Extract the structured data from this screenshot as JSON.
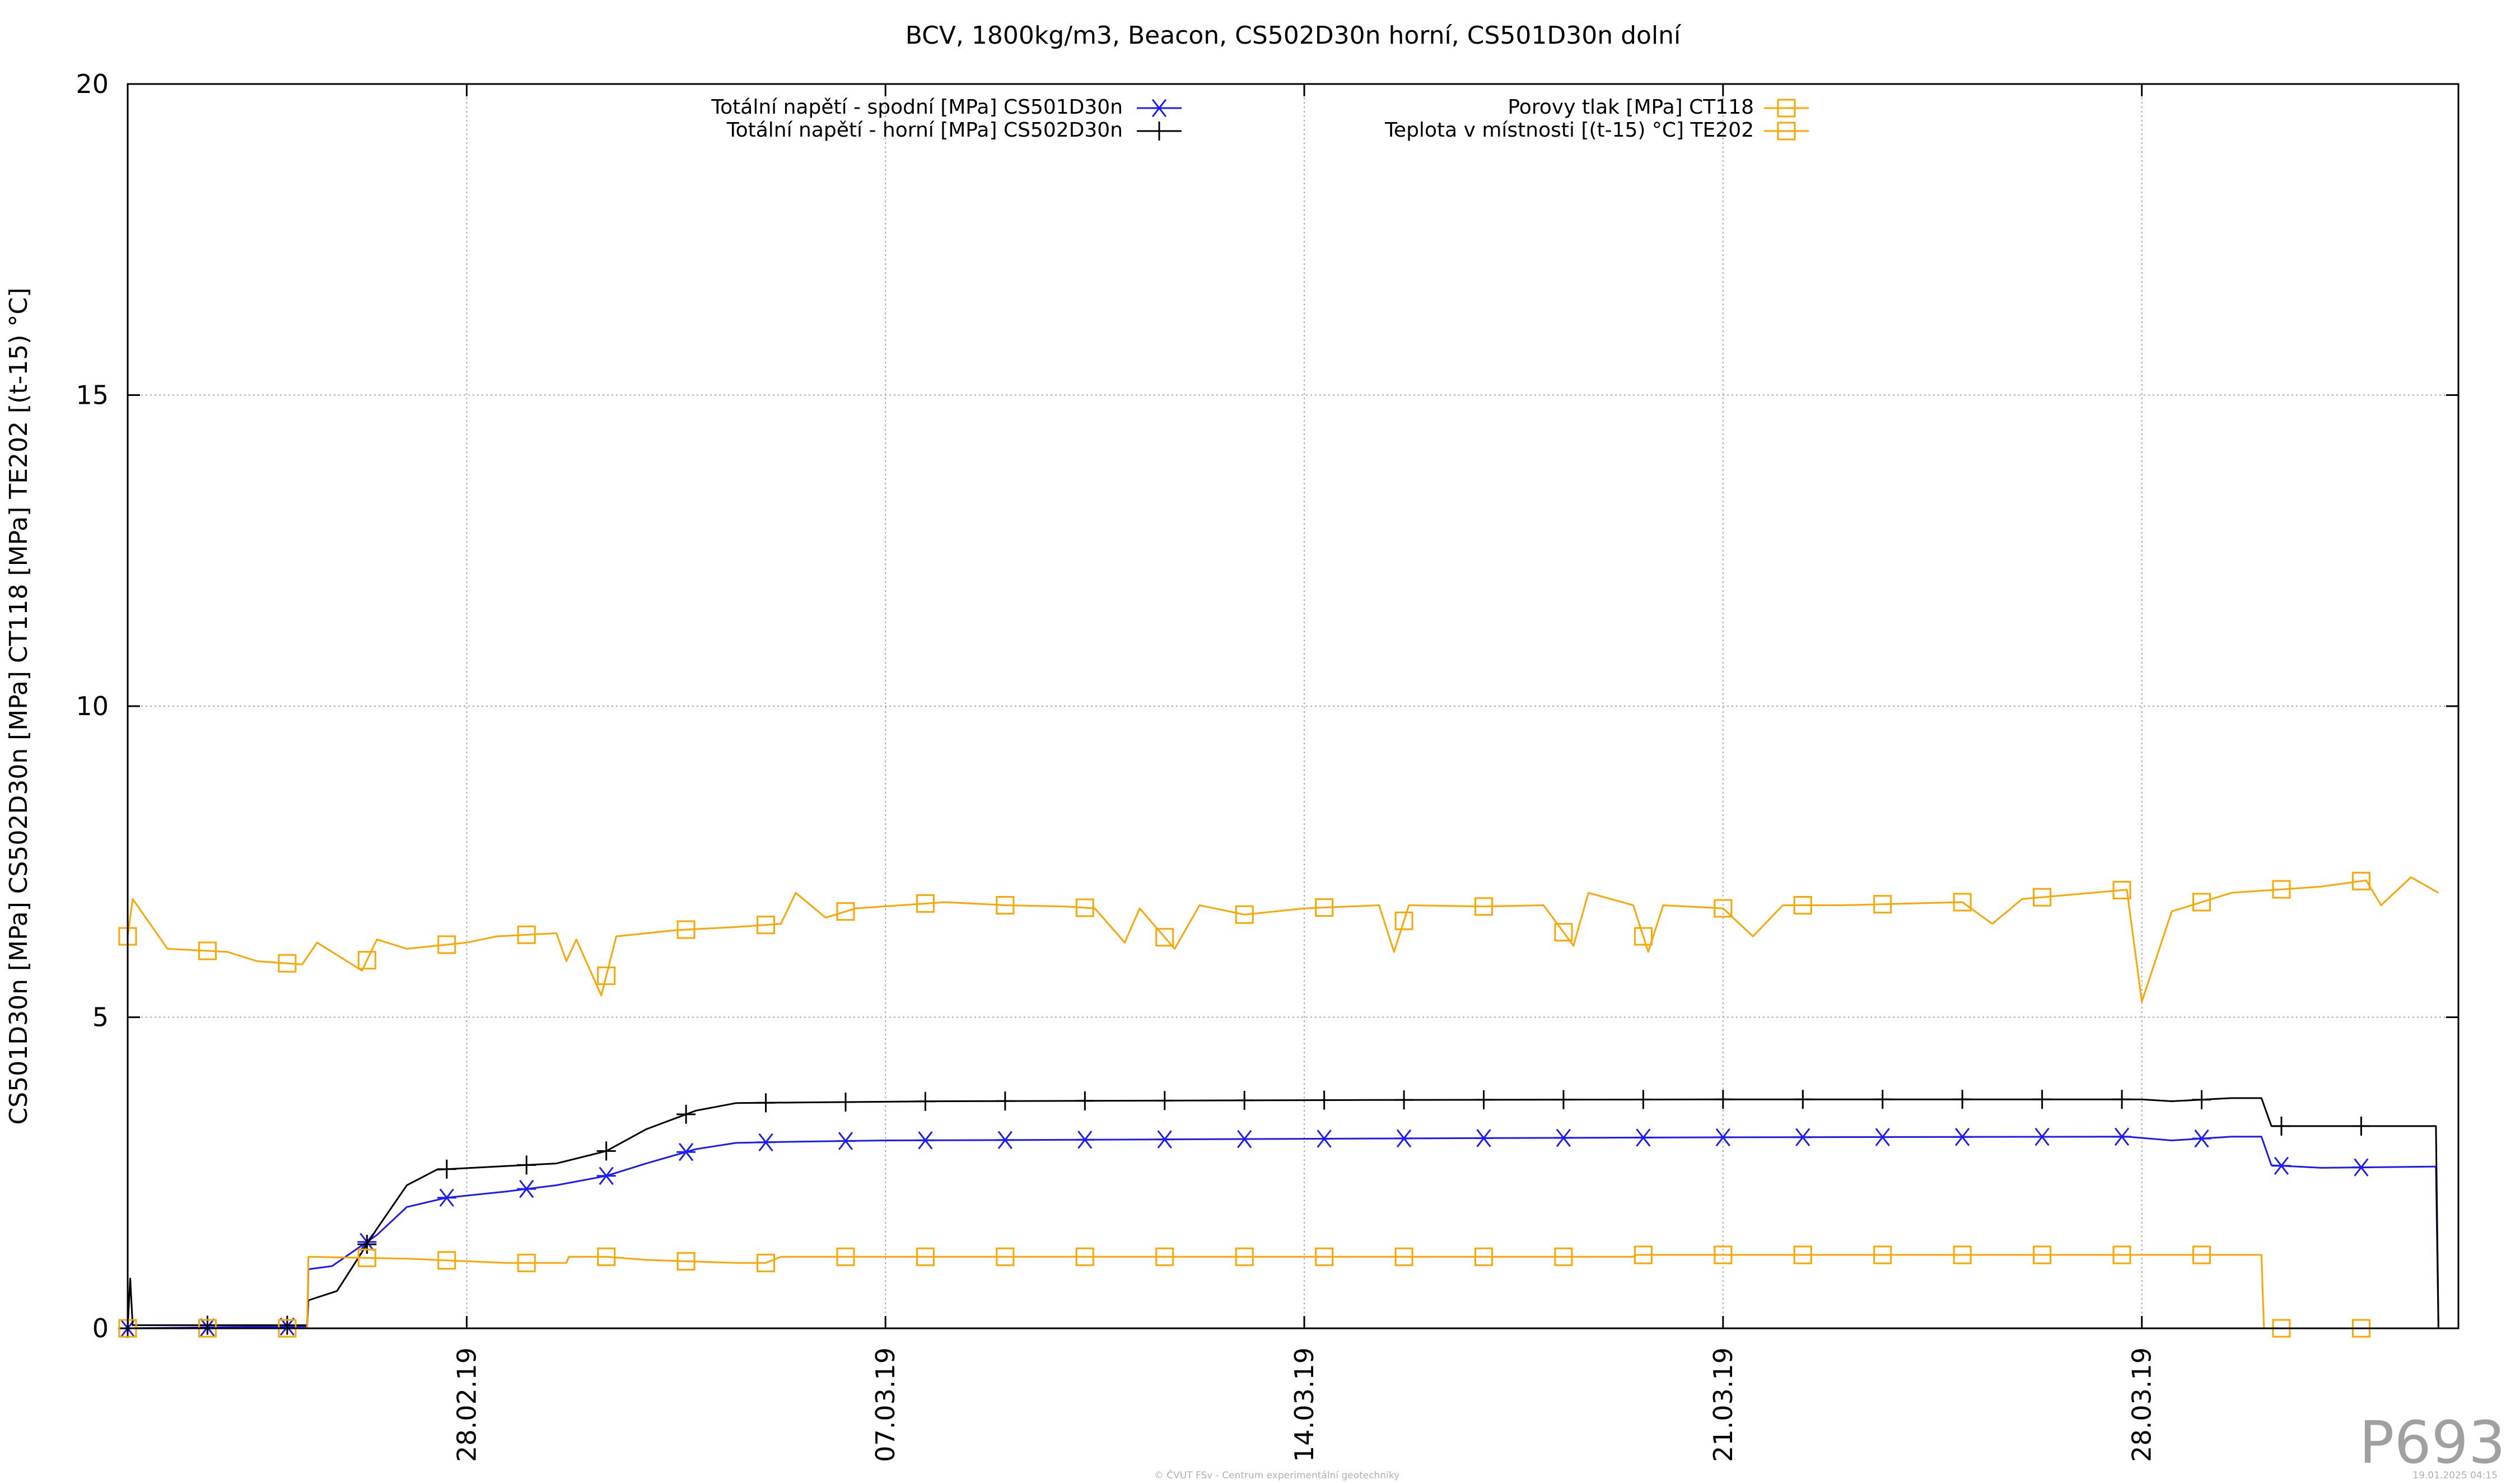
{
  "chart_data": {
    "type": "line",
    "title": "BCV, 1800kg/m3, Beacon, CS502D30n horní, CS501D30n dolní",
    "xlabel": "",
    "ylabel": "CS501D30n [MPa] CS502D30n [MPa] CT118 [MPa] TE202 [(t-15) °C]",
    "x_type": "date",
    "xlim": [
      "2019-02-22T08:00",
      "2019-04-02T07:00"
    ],
    "ylim": [
      0,
      20
    ],
    "grid": true,
    "legend_position": "top",
    "x_ticks": [
      {
        "x": "2019-02-28",
        "label": "28.02.19"
      },
      {
        "x": "2019-03-07",
        "label": "07.03.19"
      },
      {
        "x": "2019-03-14",
        "label": "14.03.19"
      },
      {
        "x": "2019-03-21",
        "label": "21.03.19"
      },
      {
        "x": "2019-03-28",
        "label": "28.03.19"
      }
    ],
    "y_ticks": [
      {
        "y": 0,
        "label": "0"
      },
      {
        "y": 5,
        "label": "5"
      },
      {
        "y": 10,
        "label": "10"
      },
      {
        "y": 15,
        "label": "15"
      },
      {
        "y": 20,
        "label": "20"
      }
    ],
    "series": [
      {
        "name": "Totální napětí - spodní [MPa] CS501D30n",
        "color": "#1a1aff",
        "marker": "asterisk",
        "points": [
          [
            "2019-02-22T08:00",
            0.0
          ],
          [
            "2019-02-24T00:00",
            0.02
          ],
          [
            "2019-02-25T08:00",
            0.03
          ],
          [
            "2019-02-25T08:30",
            0.95
          ],
          [
            "2019-02-25T18:00",
            1.0
          ],
          [
            "2019-02-26T12:00",
            1.5
          ],
          [
            "2019-02-27T00:00",
            1.95
          ],
          [
            "2019-02-27T16:00",
            2.1
          ],
          [
            "2019-02-28T16:00",
            2.2
          ],
          [
            "2019-03-01T12:00",
            2.3
          ],
          [
            "2019-03-02T08:00",
            2.45
          ],
          [
            "2019-03-03T00:00",
            2.65
          ],
          [
            "2019-03-03T20:00",
            2.88
          ],
          [
            "2019-03-04T12:00",
            2.98
          ],
          [
            "2019-03-05T12:00",
            3.0
          ],
          [
            "2019-03-07T00:00",
            3.02
          ],
          [
            "2019-03-10T00:00",
            3.03
          ],
          [
            "2019-03-15T00:00",
            3.05
          ],
          [
            "2019-03-21T00:00",
            3.07
          ],
          [
            "2019-03-27T18:00",
            3.08
          ],
          [
            "2019-03-28T12:00",
            3.02
          ],
          [
            "2019-03-29T12:00",
            3.08
          ],
          [
            "2019-03-30T00:00",
            3.08
          ],
          [
            "2019-03-30T04:00",
            2.62
          ],
          [
            "2019-03-31T00:00",
            2.58
          ],
          [
            "2019-04-01T22:00",
            2.6
          ],
          [
            "2019-04-01T23:00",
            0.0
          ]
        ]
      },
      {
        "name": "Totální napětí - horní  [MPa] CS502D30n",
        "color": "#000000",
        "marker": "plus",
        "points": [
          [
            "2019-02-22T08:00",
            0.0
          ],
          [
            "2019-02-22T09:00",
            0.8
          ],
          [
            "2019-02-22T10:00",
            0.05
          ],
          [
            "2019-02-25T08:00",
            0.05
          ],
          [
            "2019-02-25T08:30",
            0.45
          ],
          [
            "2019-02-25T20:00",
            0.6
          ],
          [
            "2019-02-26T12:00",
            1.6
          ],
          [
            "2019-02-27T00:00",
            2.3
          ],
          [
            "2019-02-27T12:00",
            2.55
          ],
          [
            "2019-02-28T12:00",
            2.6
          ],
          [
            "2019-03-01T12:00",
            2.65
          ],
          [
            "2019-03-02T08:00",
            2.85
          ],
          [
            "2019-03-03T00:00",
            3.2
          ],
          [
            "2019-03-03T20:00",
            3.5
          ],
          [
            "2019-03-04T12:00",
            3.62
          ],
          [
            "2019-03-05T12:00",
            3.63
          ],
          [
            "2019-03-08T00:00",
            3.65
          ],
          [
            "2019-03-15T00:00",
            3.67
          ],
          [
            "2019-03-21T00:00",
            3.68
          ],
          [
            "2019-03-28T00:00",
            3.68
          ],
          [
            "2019-03-28T12:00",
            3.65
          ],
          [
            "2019-03-29T12:00",
            3.7
          ],
          [
            "2019-03-30T00:00",
            3.7
          ],
          [
            "2019-03-30T04:00",
            3.25
          ],
          [
            "2019-04-01T22:00",
            3.25
          ],
          [
            "2019-04-01T23:00",
            0.0
          ]
        ]
      },
      {
        "name": "Porovy tlak [MPa] CT118",
        "color": "#ffa500",
        "marker": "square",
        "points": [
          [
            "2019-02-22T08:00",
            0.0
          ],
          [
            "2019-02-25T08:00",
            0.0
          ],
          [
            "2019-02-25T08:30",
            1.15
          ],
          [
            "2019-02-27T00:00",
            1.12
          ],
          [
            "2019-02-28T16:00",
            1.05
          ],
          [
            "2019-03-01T16:00",
            1.05
          ],
          [
            "2019-03-01T17:00",
            1.15
          ],
          [
            "2019-03-02T08:00",
            1.15
          ],
          [
            "2019-03-03T00:00",
            1.1
          ],
          [
            "2019-03-04T12:00",
            1.05
          ],
          [
            "2019-03-05T00:00",
            1.05
          ],
          [
            "2019-03-05T06:00",
            1.15
          ],
          [
            "2019-03-10T00:00",
            1.15
          ],
          [
            "2019-03-17T00:00",
            1.15
          ],
          [
            "2019-03-19T12:00",
            1.15
          ],
          [
            "2019-03-19T13:00",
            1.18
          ],
          [
            "2019-03-25T00:00",
            1.18
          ],
          [
            "2019-03-30T00:00",
            1.18
          ],
          [
            "2019-03-30T01:00",
            0.0
          ],
          [
            "2019-04-01T23:00",
            0.0
          ]
        ]
      },
      {
        "name": "Teplota v místnosti [(t-15) °C] TE202",
        "color": "#ffa500",
        "marker": "square",
        "points": [
          [
            "2019-02-22T08:00",
            6.3
          ],
          [
            "2019-02-22T10:00",
            6.9
          ],
          [
            "2019-02-23T00:00",
            6.1
          ],
          [
            "2019-02-24T00:00",
            6.05
          ],
          [
            "2019-02-24T12:00",
            5.9
          ],
          [
            "2019-02-25T06:00",
            5.85
          ],
          [
            "2019-02-25T12:00",
            6.2
          ],
          [
            "2019-02-26T06:00",
            5.75
          ],
          [
            "2019-02-26T12:00",
            6.25
          ],
          [
            "2019-02-27T00:00",
            6.1
          ],
          [
            "2019-02-28T00:00",
            6.2
          ],
          [
            "2019-02-28T12:00",
            6.3
          ],
          [
            "2019-03-01T12:00",
            6.35
          ],
          [
            "2019-03-01T16:00",
            5.9
          ],
          [
            "2019-03-01T20:00",
            6.25
          ],
          [
            "2019-03-02T06:00",
            5.35
          ],
          [
            "2019-03-02T12:00",
            6.3
          ],
          [
            "2019-03-03T12:00",
            6.4
          ],
          [
            "2019-03-04T12:00",
            6.45
          ],
          [
            "2019-03-05T06:00",
            6.5
          ],
          [
            "2019-03-05T12:00",
            7.0
          ],
          [
            "2019-03-06T00:00",
            6.6
          ],
          [
            "2019-03-06T12:00",
            6.75
          ],
          [
            "2019-03-08T00:00",
            6.85
          ],
          [
            "2019-03-09T00:00",
            6.8
          ],
          [
            "2019-03-10T00:00",
            6.78
          ],
          [
            "2019-03-10T12:00",
            6.75
          ],
          [
            "2019-03-11T00:00",
            6.2
          ],
          [
            "2019-03-11T06:00",
            6.75
          ],
          [
            "2019-03-11T20:00",
            6.1
          ],
          [
            "2019-03-12T06:00",
            6.8
          ],
          [
            "2019-03-13T00:00",
            6.65
          ],
          [
            "2019-03-14T00:00",
            6.75
          ],
          [
            "2019-03-15T06:00",
            6.8
          ],
          [
            "2019-03-15T12:00",
            6.05
          ],
          [
            "2019-03-15T18:00",
            6.8
          ],
          [
            "2019-03-17T00:00",
            6.78
          ],
          [
            "2019-03-18T00:00",
            6.8
          ],
          [
            "2019-03-18T12:00",
            6.15
          ],
          [
            "2019-03-18T18:00",
            7.0
          ],
          [
            "2019-03-19T12:00",
            6.8
          ],
          [
            "2019-03-19T18:00",
            6.05
          ],
          [
            "2019-03-20T00:00",
            6.8
          ],
          [
            "2019-03-21T00:00",
            6.75
          ],
          [
            "2019-03-21T12:00",
            6.3
          ],
          [
            "2019-03-22T00:00",
            6.8
          ],
          [
            "2019-03-23T00:00",
            6.8
          ],
          [
            "2019-03-25T00:00",
            6.85
          ],
          [
            "2019-03-25T12:00",
            6.5
          ],
          [
            "2019-03-26T00:00",
            6.9
          ],
          [
            "2019-03-27T18:00",
            7.05
          ],
          [
            "2019-03-28T00:00",
            5.25
          ],
          [
            "2019-03-28T12:00",
            6.7
          ],
          [
            "2019-03-29T12:00",
            7.0
          ],
          [
            "2019-03-31T00:00",
            7.1
          ],
          [
            "2019-03-31T18:00",
            7.2
          ],
          [
            "2019-04-01T00:00",
            6.8
          ],
          [
            "2019-04-01T12:00",
            7.25
          ],
          [
            "2019-04-01T23:00",
            7.0
          ]
        ]
      }
    ]
  },
  "plot_id": "P693",
  "footer": {
    "center": "© ČVUT FSv - Centrum experimentální geotechniky",
    "right": "19.01.2025 04:15"
  }
}
